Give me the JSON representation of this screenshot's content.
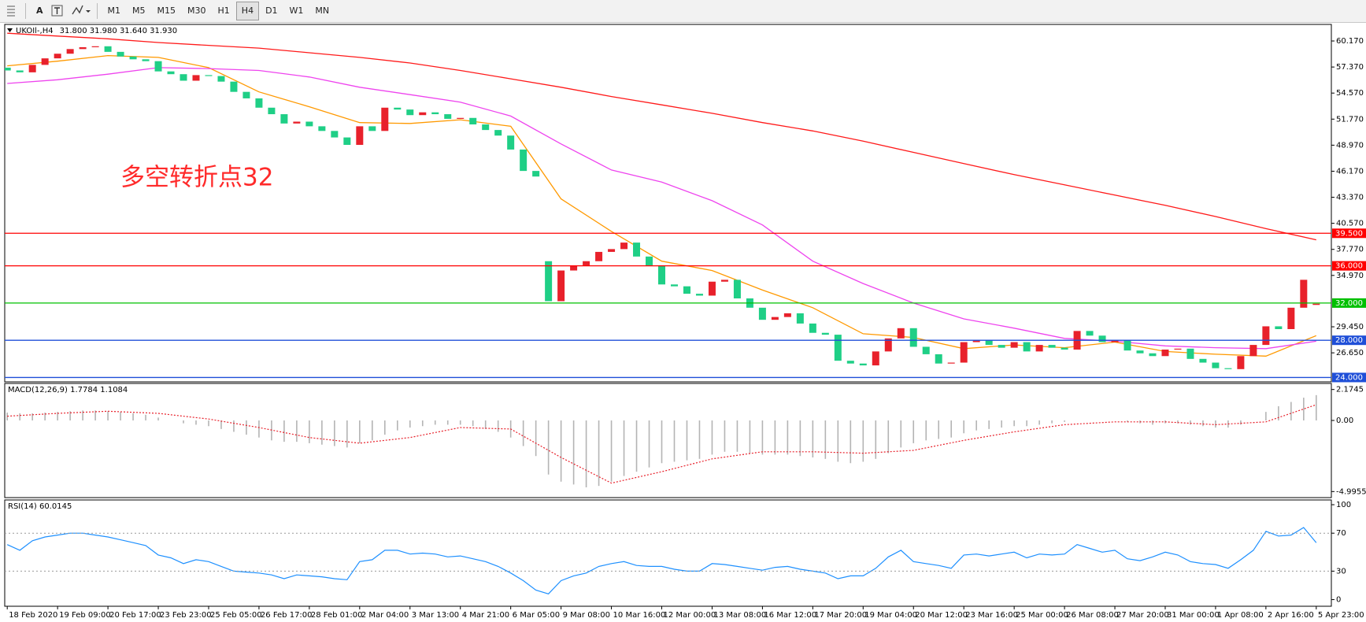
{
  "toolbar": {
    "tools": [
      "A"
    ],
    "timeframes": [
      "M1",
      "M5",
      "M15",
      "M30",
      "H1",
      "H4",
      "D1",
      "W1",
      "MN"
    ]
  },
  "chart_data": [
    {
      "type": "candlestick",
      "title": "UKOIl-,H4",
      "quote": "31.800 31.980 31.640 31.930",
      "annotation": "多空转折点32",
      "xlim": [
        -0.2,
        105.2
      ],
      "ylim": [
        23.53,
        61.95
      ],
      "yticks": [
        {
          "value": 60.17,
          "label": "60.170"
        },
        {
          "value": 57.37,
          "label": "57.370"
        },
        {
          "value": 54.57,
          "label": "54.570"
        },
        {
          "value": 51.77,
          "label": "51.770"
        },
        {
          "value": 48.97,
          "label": "48.970"
        },
        {
          "value": 46.17,
          "label": "46.170"
        },
        {
          "value": 43.37,
          "label": "43.370"
        },
        {
          "value": 40.57,
          "label": "40.570"
        },
        {
          "value": 37.77,
          "label": "37.770"
        },
        {
          "value": 34.97,
          "label": "34.970"
        },
        {
          "value": 29.45,
          "label": "29.450"
        },
        {
          "value": 26.65,
          "label": "26.650"
        }
      ],
      "up_color": "#e8212b",
      "down_color": "#1fcf86",
      "open": [
        57.3,
        57.0,
        56.8,
        57.6,
        58.3,
        58.8,
        59.3,
        59.5,
        59.6,
        59.0,
        58.5,
        58.2,
        58.0,
        56.9,
        56.6,
        55.9,
        56.5,
        56.4,
        55.8,
        54.7,
        54.0,
        53.0,
        52.3,
        51.3,
        51.5,
        51.0,
        50.5,
        49.8,
        49.0,
        51.0,
        50.5,
        53.0,
        52.8,
        52.2,
        52.5,
        52.3,
        51.8,
        51.9,
        51.2,
        50.6,
        50.0,
        48.5,
        46.2,
        36.5,
        32.2,
        35.5,
        36.0,
        36.5,
        37.5,
        37.8,
        38.5,
        37.0,
        36.0,
        34.0,
        33.8,
        33.0,
        32.8,
        34.3,
        34.5,
        32.5,
        31.5,
        30.2,
        30.5,
        30.9,
        29.8,
        28.8,
        28.6,
        25.8,
        25.5,
        25.3,
        26.8,
        28.2,
        29.3,
        27.3,
        26.5,
        25.5,
        25.6,
        27.8,
        28.0,
        27.5,
        27.2,
        27.8,
        26.8,
        27.5,
        27.2,
        27.0,
        29.0,
        28.5,
        27.8,
        28.0,
        26.9,
        26.6,
        26.3,
        27.0,
        27.1,
        26.0,
        25.6,
        25.0,
        24.9,
        26.3,
        27.5,
        29.5,
        29.2,
        31.5,
        31.8
      ],
      "close": [
        57.0,
        56.8,
        57.6,
        58.3,
        58.8,
        59.3,
        59.5,
        59.6,
        59.0,
        58.5,
        58.2,
        58.0,
        56.9,
        56.6,
        55.9,
        56.5,
        56.4,
        55.8,
        54.7,
        54.0,
        53.0,
        52.3,
        51.3,
        51.5,
        51.0,
        50.5,
        49.8,
        49.0,
        51.0,
        50.5,
        53.0,
        52.8,
        52.2,
        52.5,
        52.3,
        51.8,
        51.9,
        51.2,
        50.6,
        50.0,
        48.5,
        46.2,
        45.6,
        32.2,
        35.5,
        36.0,
        36.5,
        37.5,
        37.8,
        38.5,
        37.0,
        36.0,
        34.0,
        33.8,
        33.0,
        32.8,
        34.3,
        34.5,
        32.5,
        31.5,
        30.2,
        30.5,
        30.9,
        29.8,
        28.8,
        28.6,
        25.8,
        25.5,
        25.3,
        26.8,
        28.2,
        29.3,
        27.3,
        26.5,
        25.5,
        25.6,
        27.8,
        28.0,
        27.5,
        27.2,
        27.8,
        26.8,
        27.5,
        27.2,
        27.0,
        29.0,
        28.5,
        27.8,
        28.0,
        26.9,
        26.6,
        26.3,
        27.0,
        27.1,
        26.0,
        25.6,
        25.0,
        24.9,
        26.3,
        27.5,
        29.5,
        29.2,
        31.5,
        34.5,
        31.93
      ],
      "ma_x": [
        0,
        4,
        8,
        12,
        16,
        20,
        24,
        28,
        32,
        36,
        40,
        44,
        48,
        52,
        56,
        60,
        64,
        68,
        72,
        76,
        80,
        84,
        88,
        92,
        96,
        100,
        104
      ],
      "series": [
        {
          "color": "#ff9900",
          "values": [
            57.5,
            58.0,
            58.6,
            58.4,
            57.3,
            54.7,
            53.1,
            51.4,
            51.3,
            51.7,
            51.0,
            43.2,
            39.7,
            36.5,
            35.5,
            33.4,
            31.5,
            28.7,
            28.3,
            27.1,
            27.5,
            27.2,
            27.8,
            26.8,
            26.5,
            26.3,
            28.5
          ]
        },
        {
          "color": "#ee44ee",
          "values": [
            55.6,
            56.0,
            56.6,
            57.3,
            57.2,
            57.0,
            56.3,
            55.2,
            54.4,
            53.6,
            52.1,
            49.1,
            46.3,
            45.0,
            43.0,
            40.4,
            36.5,
            34.1,
            32.0,
            30.3,
            29.3,
            28.2,
            27.9,
            27.4,
            27.2,
            27.1,
            27.9
          ]
        },
        {
          "color": "#ff1a1a",
          "values": [
            61.0,
            60.7,
            60.4,
            60.0,
            59.7,
            59.4,
            58.9,
            58.4,
            57.8,
            57.0,
            56.1,
            55.2,
            54.2,
            53.3,
            52.4,
            51.4,
            50.5,
            49.4,
            48.2,
            47.0,
            45.8,
            44.7,
            43.6,
            42.5,
            41.3,
            40.0,
            38.8
          ]
        }
      ],
      "levels": [
        {
          "value": 39.5,
          "label": "39.500",
          "color": "#ff0000"
        },
        {
          "value": 36,
          "label": "36.000",
          "color": "#ff0000"
        },
        {
          "value": 32,
          "label": "32.000",
          "color": "#00c000"
        },
        {
          "value": 28,
          "label": "28.000",
          "color": "#1f4fd8"
        },
        {
          "value": 24,
          "label": "24.000",
          "color": "#1f4fd8"
        }
      ]
    },
    {
      "type": "macd",
      "title": "MACD(12,26,9) 1.7784 1.1084",
      "xlim": [
        -0.2,
        105.2
      ],
      "ylim": [
        -5.42,
        2.6
      ],
      "yticks": [
        2.1745,
        {
          "value": 0,
          "label": "0.00"
        },
        -4.9955
      ],
      "bar_color": "#b4b4b4",
      "values": [
        0.55,
        0.5,
        0.5,
        0.55,
        0.6,
        0.65,
        0.7,
        0.7,
        0.65,
        0.6,
        0.5,
        0.4,
        0.2,
        0.0,
        -0.2,
        -0.3,
        -0.4,
        -0.6,
        -0.8,
        -1.0,
        -1.2,
        -1.4,
        -1.5,
        -1.5,
        -1.6,
        -1.7,
        -1.8,
        -1.9,
        -1.6,
        -1.4,
        -1.0,
        -0.7,
        -0.5,
        -0.4,
        -0.3,
        -0.3,
        -0.3,
        -0.4,
        -0.6,
        -0.8,
        -1.2,
        -1.8,
        -2.5,
        -3.8,
        -4.3,
        -4.5,
        -4.7,
        -4.6,
        -4.3,
        -3.9,
        -3.6,
        -3.3,
        -3.0,
        -2.9,
        -2.8,
        -2.7,
        -2.4,
        -2.2,
        -2.2,
        -2.3,
        -2.4,
        -2.4,
        -2.4,
        -2.5,
        -2.6,
        -2.7,
        -2.9,
        -3.0,
        -2.9,
        -2.7,
        -2.3,
        -1.9,
        -1.6,
        -1.4,
        -1.3,
        -1.2,
        -0.9,
        -0.7,
        -0.6,
        -0.5,
        -0.4,
        -0.4,
        -0.3,
        -0.2,
        -0.1,
        0.0,
        0.0,
        0.0,
        0.0,
        -0.1,
        -0.2,
        -0.3,
        -0.2,
        -0.2,
        -0.3,
        -0.4,
        -0.5,
        -0.5,
        -0.3,
        0.0,
        0.6,
        1.0,
        1.3,
        1.6,
        1.7784
      ],
      "signal": {
        "color": "#e8212b",
        "x": [
          0,
          4,
          8,
          12,
          16,
          20,
          24,
          28,
          32,
          36,
          40,
          44,
          48,
          52,
          56,
          60,
          64,
          68,
          72,
          76,
          80,
          84,
          88,
          92,
          96,
          100,
          104
        ],
        "values": [
          0.3,
          0.5,
          0.65,
          0.5,
          0.1,
          -0.5,
          -1.2,
          -1.6,
          -1.2,
          -0.5,
          -0.6,
          -2.6,
          -4.4,
          -3.6,
          -2.7,
          -2.2,
          -2.2,
          -2.3,
          -2.1,
          -1.4,
          -0.8,
          -0.3,
          -0.1,
          -0.1,
          -0.3,
          -0.1,
          1.1084
        ]
      }
    },
    {
      "type": "line",
      "title": "RSI(14) 60.0145",
      "xlim": [
        -0.2,
        105.2
      ],
      "ylim": [
        -7,
        105
      ],
      "yticks": [
        100,
        70,
        30,
        0
      ],
      "levels": [
        70,
        30
      ],
      "color": "#1e90ff",
      "values": [
        58,
        52,
        62,
        66,
        68,
        70,
        70,
        68,
        66,
        63,
        60,
        57,
        47,
        44,
        38,
        42,
        40,
        35,
        30,
        29,
        28,
        26,
        22,
        26,
        25,
        24,
        22,
        21,
        40,
        42,
        52,
        52,
        48,
        49,
        48,
        45,
        46,
        43,
        40,
        35,
        28,
        20,
        10,
        6,
        20,
        25,
        28,
        35,
        38,
        40,
        36,
        35,
        35,
        32,
        30,
        30,
        38,
        37,
        35,
        33,
        31,
        34,
        35,
        32,
        30,
        28,
        22,
        25,
        25,
        33,
        45,
        52,
        40,
        38,
        36,
        33,
        47,
        48,
        46,
        48,
        50,
        44,
        48,
        47,
        48,
        58,
        54,
        50,
        52,
        43,
        41,
        45,
        50,
        47,
        40,
        38,
        37,
        33,
        42,
        52,
        72,
        67,
        68,
        76,
        60.0145
      ],
      "xticks": [
        {
          "value": 0,
          "label": "18 Feb 2020"
        },
        {
          "value": 4,
          "label": "19 Feb 09:00"
        },
        {
          "value": 8,
          "label": "20 Feb 17:00"
        },
        {
          "value": 12,
          "label": "23 Feb 23:00"
        },
        {
          "value": 16,
          "label": "25 Feb 05:00"
        },
        {
          "value": 20,
          "label": "26 Feb 17:00"
        },
        {
          "value": 24,
          "label": "28 Feb 01:00"
        },
        {
          "value": 28,
          "label": "2 Mar 04:00"
        },
        {
          "value": 32,
          "label": "3 Mar 13:00"
        },
        {
          "value": 36,
          "label": "4 Mar 21:00"
        },
        {
          "value": 40,
          "label": "6 Mar 05:00"
        },
        {
          "value": 44,
          "label": "9 Mar 08:00"
        },
        {
          "value": 48,
          "label": "10 Mar 16:00"
        },
        {
          "value": 52,
          "label": "12 Mar 00:00"
        },
        {
          "value": 56,
          "label": "13 Mar 08:00"
        },
        {
          "value": 60,
          "label": "16 Mar 12:00"
        },
        {
          "value": 64,
          "label": "17 Mar 20:00"
        },
        {
          "value": 68,
          "label": "19 Mar 04:00"
        },
        {
          "value": 72,
          "label": "20 Mar 12:00"
        },
        {
          "value": 76,
          "label": "23 Mar 16:00"
        },
        {
          "value": 80,
          "label": "25 Mar 00:00"
        },
        {
          "value": 84,
          "label": "26 Mar 08:00"
        },
        {
          "value": 88,
          "label": "27 Mar 20:00"
        },
        {
          "value": 92,
          "label": "31 Mar 00:00"
        },
        {
          "value": 96,
          "label": "1 Apr 08:00"
        },
        {
          "value": 100,
          "label": "2 Apr 16:00"
        },
        {
          "value": 104,
          "label": "5 Apr 23:00"
        }
      ]
    }
  ]
}
